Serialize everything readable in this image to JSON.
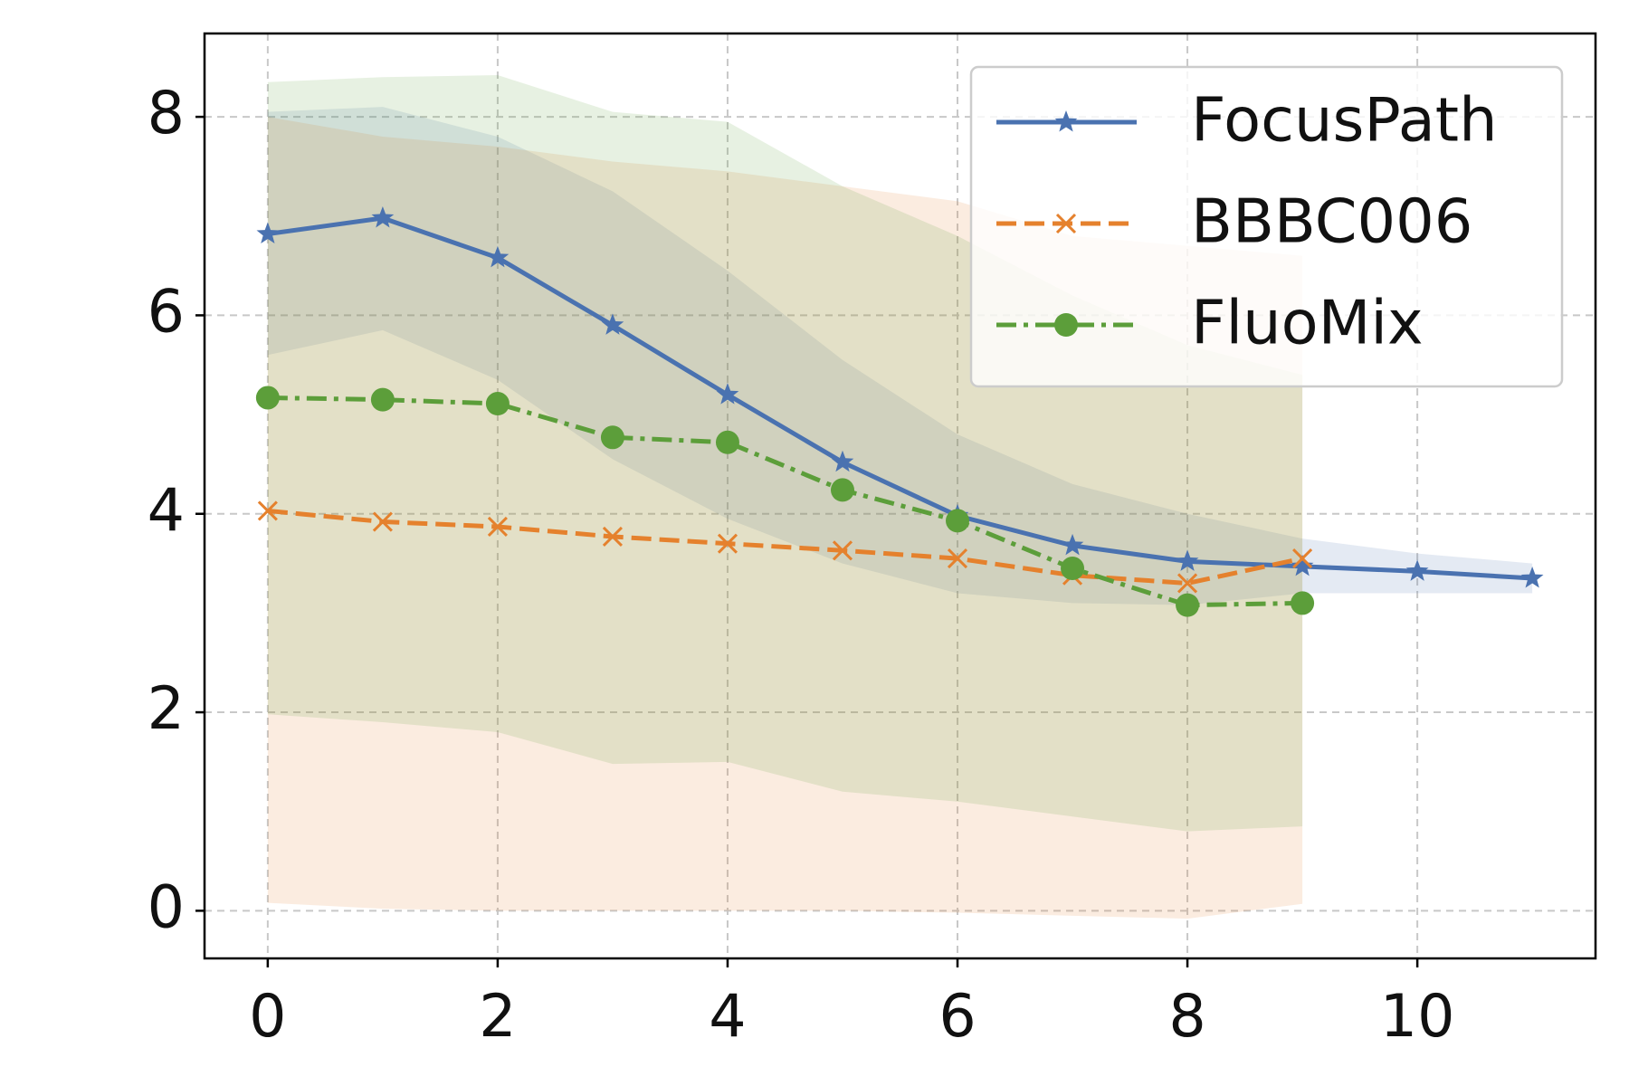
{
  "chart_data": {
    "type": "line",
    "x": [
      0,
      1,
      2,
      3,
      4,
      5,
      6,
      7,
      8,
      9,
      10,
      11
    ],
    "series": [
      {
        "name": "FocusPath",
        "color": "#4a72b0",
        "marker": "star",
        "linestyle": "solid",
        "x": [
          0,
          1,
          2,
          3,
          4,
          5,
          6,
          7,
          8,
          9,
          10,
          11
        ],
        "values": [
          6.82,
          6.98,
          6.58,
          5.9,
          5.2,
          4.52,
          3.98,
          3.68,
          3.52,
          3.47,
          3.42,
          3.35
        ],
        "upper": [
          8.05,
          8.1,
          7.8,
          7.25,
          6.45,
          5.55,
          4.8,
          4.3,
          4.0,
          3.75,
          3.6,
          3.5
        ],
        "lower": [
          5.6,
          5.85,
          5.35,
          4.55,
          3.95,
          3.5,
          3.2,
          3.1,
          3.08,
          3.2,
          3.2,
          3.2
        ]
      },
      {
        "name": "BBBC006",
        "color": "#e5812d",
        "marker": "x",
        "linestyle": "dashed",
        "x": [
          0,
          1,
          2,
          3,
          4,
          5,
          6,
          7,
          8,
          9
        ],
        "values": [
          4.03,
          3.92,
          3.87,
          3.77,
          3.7,
          3.63,
          3.55,
          3.38,
          3.3,
          3.55
        ],
        "upper": [
          8.0,
          7.8,
          7.7,
          7.55,
          7.45,
          7.3,
          7.15,
          6.8,
          6.7,
          6.6
        ],
        "lower": [
          0.08,
          0.02,
          0.0,
          0.0,
          0.0,
          0.0,
          -0.02,
          -0.05,
          -0.08,
          0.07
        ]
      },
      {
        "name": "FluoMix",
        "color": "#5c9e3a",
        "marker": "circle",
        "linestyle": "dashdot",
        "x": [
          0,
          1,
          2,
          3,
          4,
          5,
          6,
          7,
          8,
          9
        ],
        "values": [
          5.17,
          5.15,
          5.11,
          4.77,
          4.72,
          4.24,
          3.93,
          3.45,
          3.08,
          3.1
        ],
        "upper": [
          8.35,
          8.4,
          8.42,
          8.05,
          7.95,
          7.3,
          6.8,
          6.2,
          5.7,
          5.4
        ],
        "lower": [
          1.98,
          1.9,
          1.8,
          1.48,
          1.5,
          1.2,
          1.1,
          0.95,
          0.8,
          0.85
        ]
      }
    ],
    "xlim": [
      -0.55,
      11.55
    ],
    "ylim": [
      -0.48,
      8.84
    ],
    "xticks": [
      0,
      2,
      4,
      6,
      8,
      10
    ],
    "yticks": [
      0,
      2,
      4,
      6,
      8
    ],
    "grid": true,
    "legend": "upper right"
  }
}
